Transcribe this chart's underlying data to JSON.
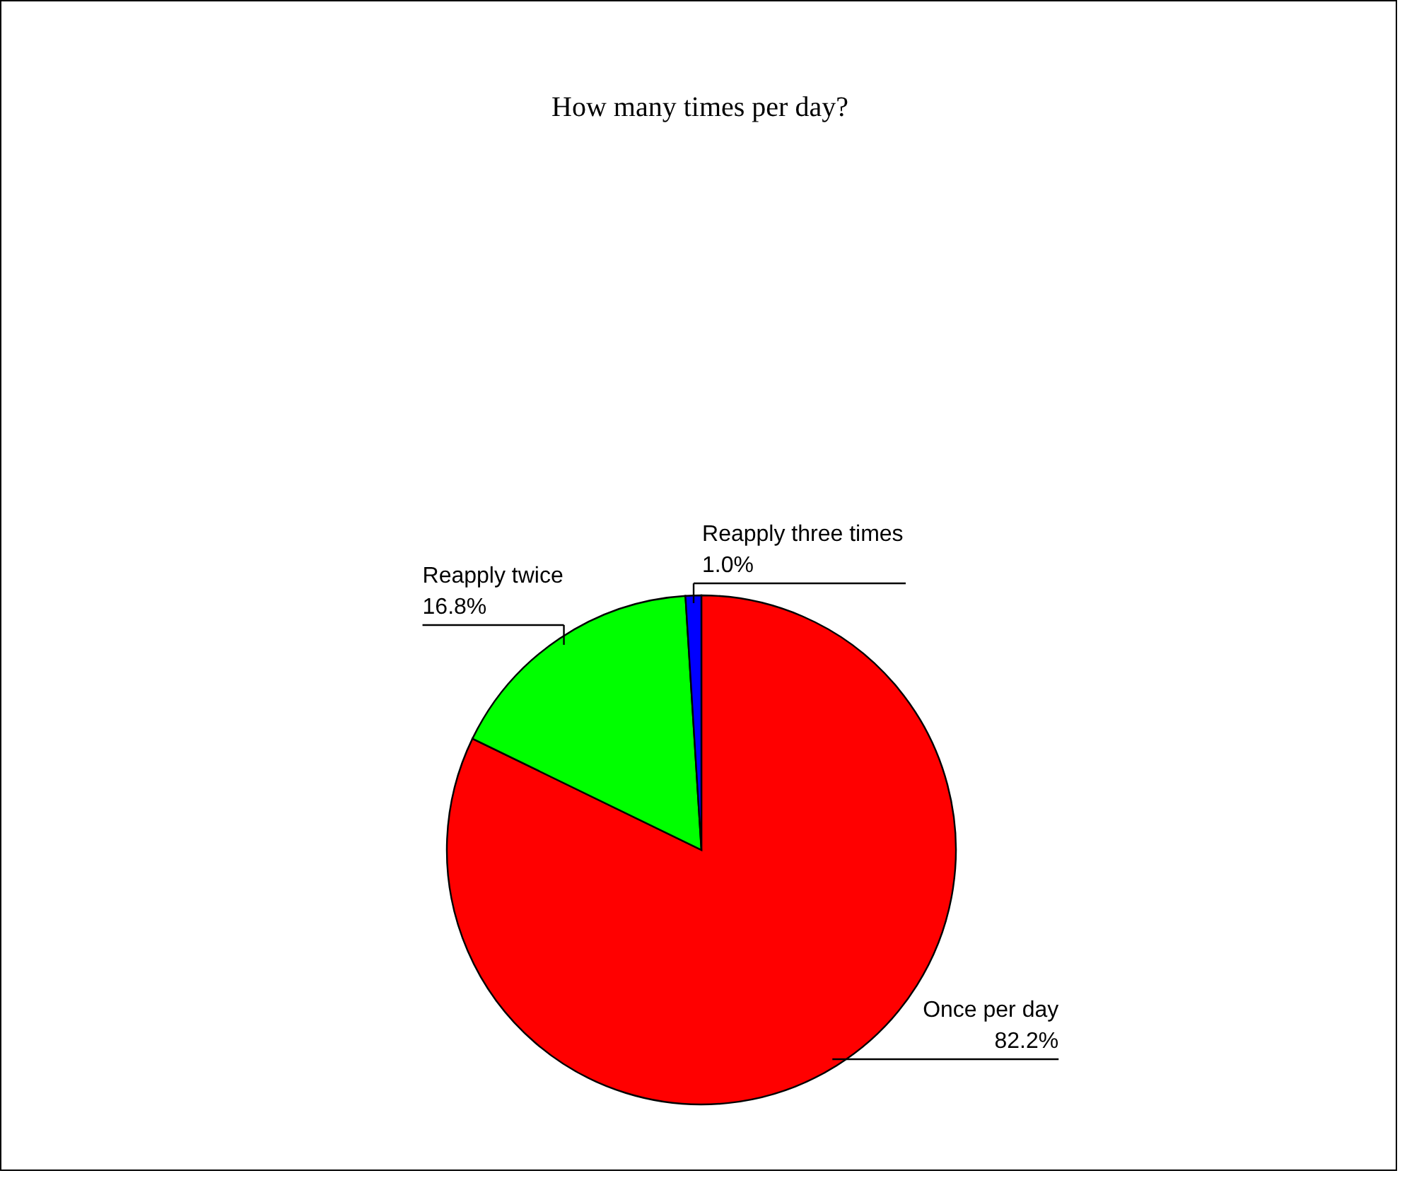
{
  "chart_data": {
    "type": "pie",
    "title": "How many times per day?",
    "categories": [
      "Once per day",
      "Reapply twice",
      "Reapply three times"
    ],
    "values": [
      82.2,
      16.8,
      1.0
    ],
    "colors": [
      "#ff0000",
      "#00ff00",
      "#0000ff"
    ],
    "value_labels": [
      "82.2%",
      "16.8%",
      "1.0%"
    ]
  }
}
